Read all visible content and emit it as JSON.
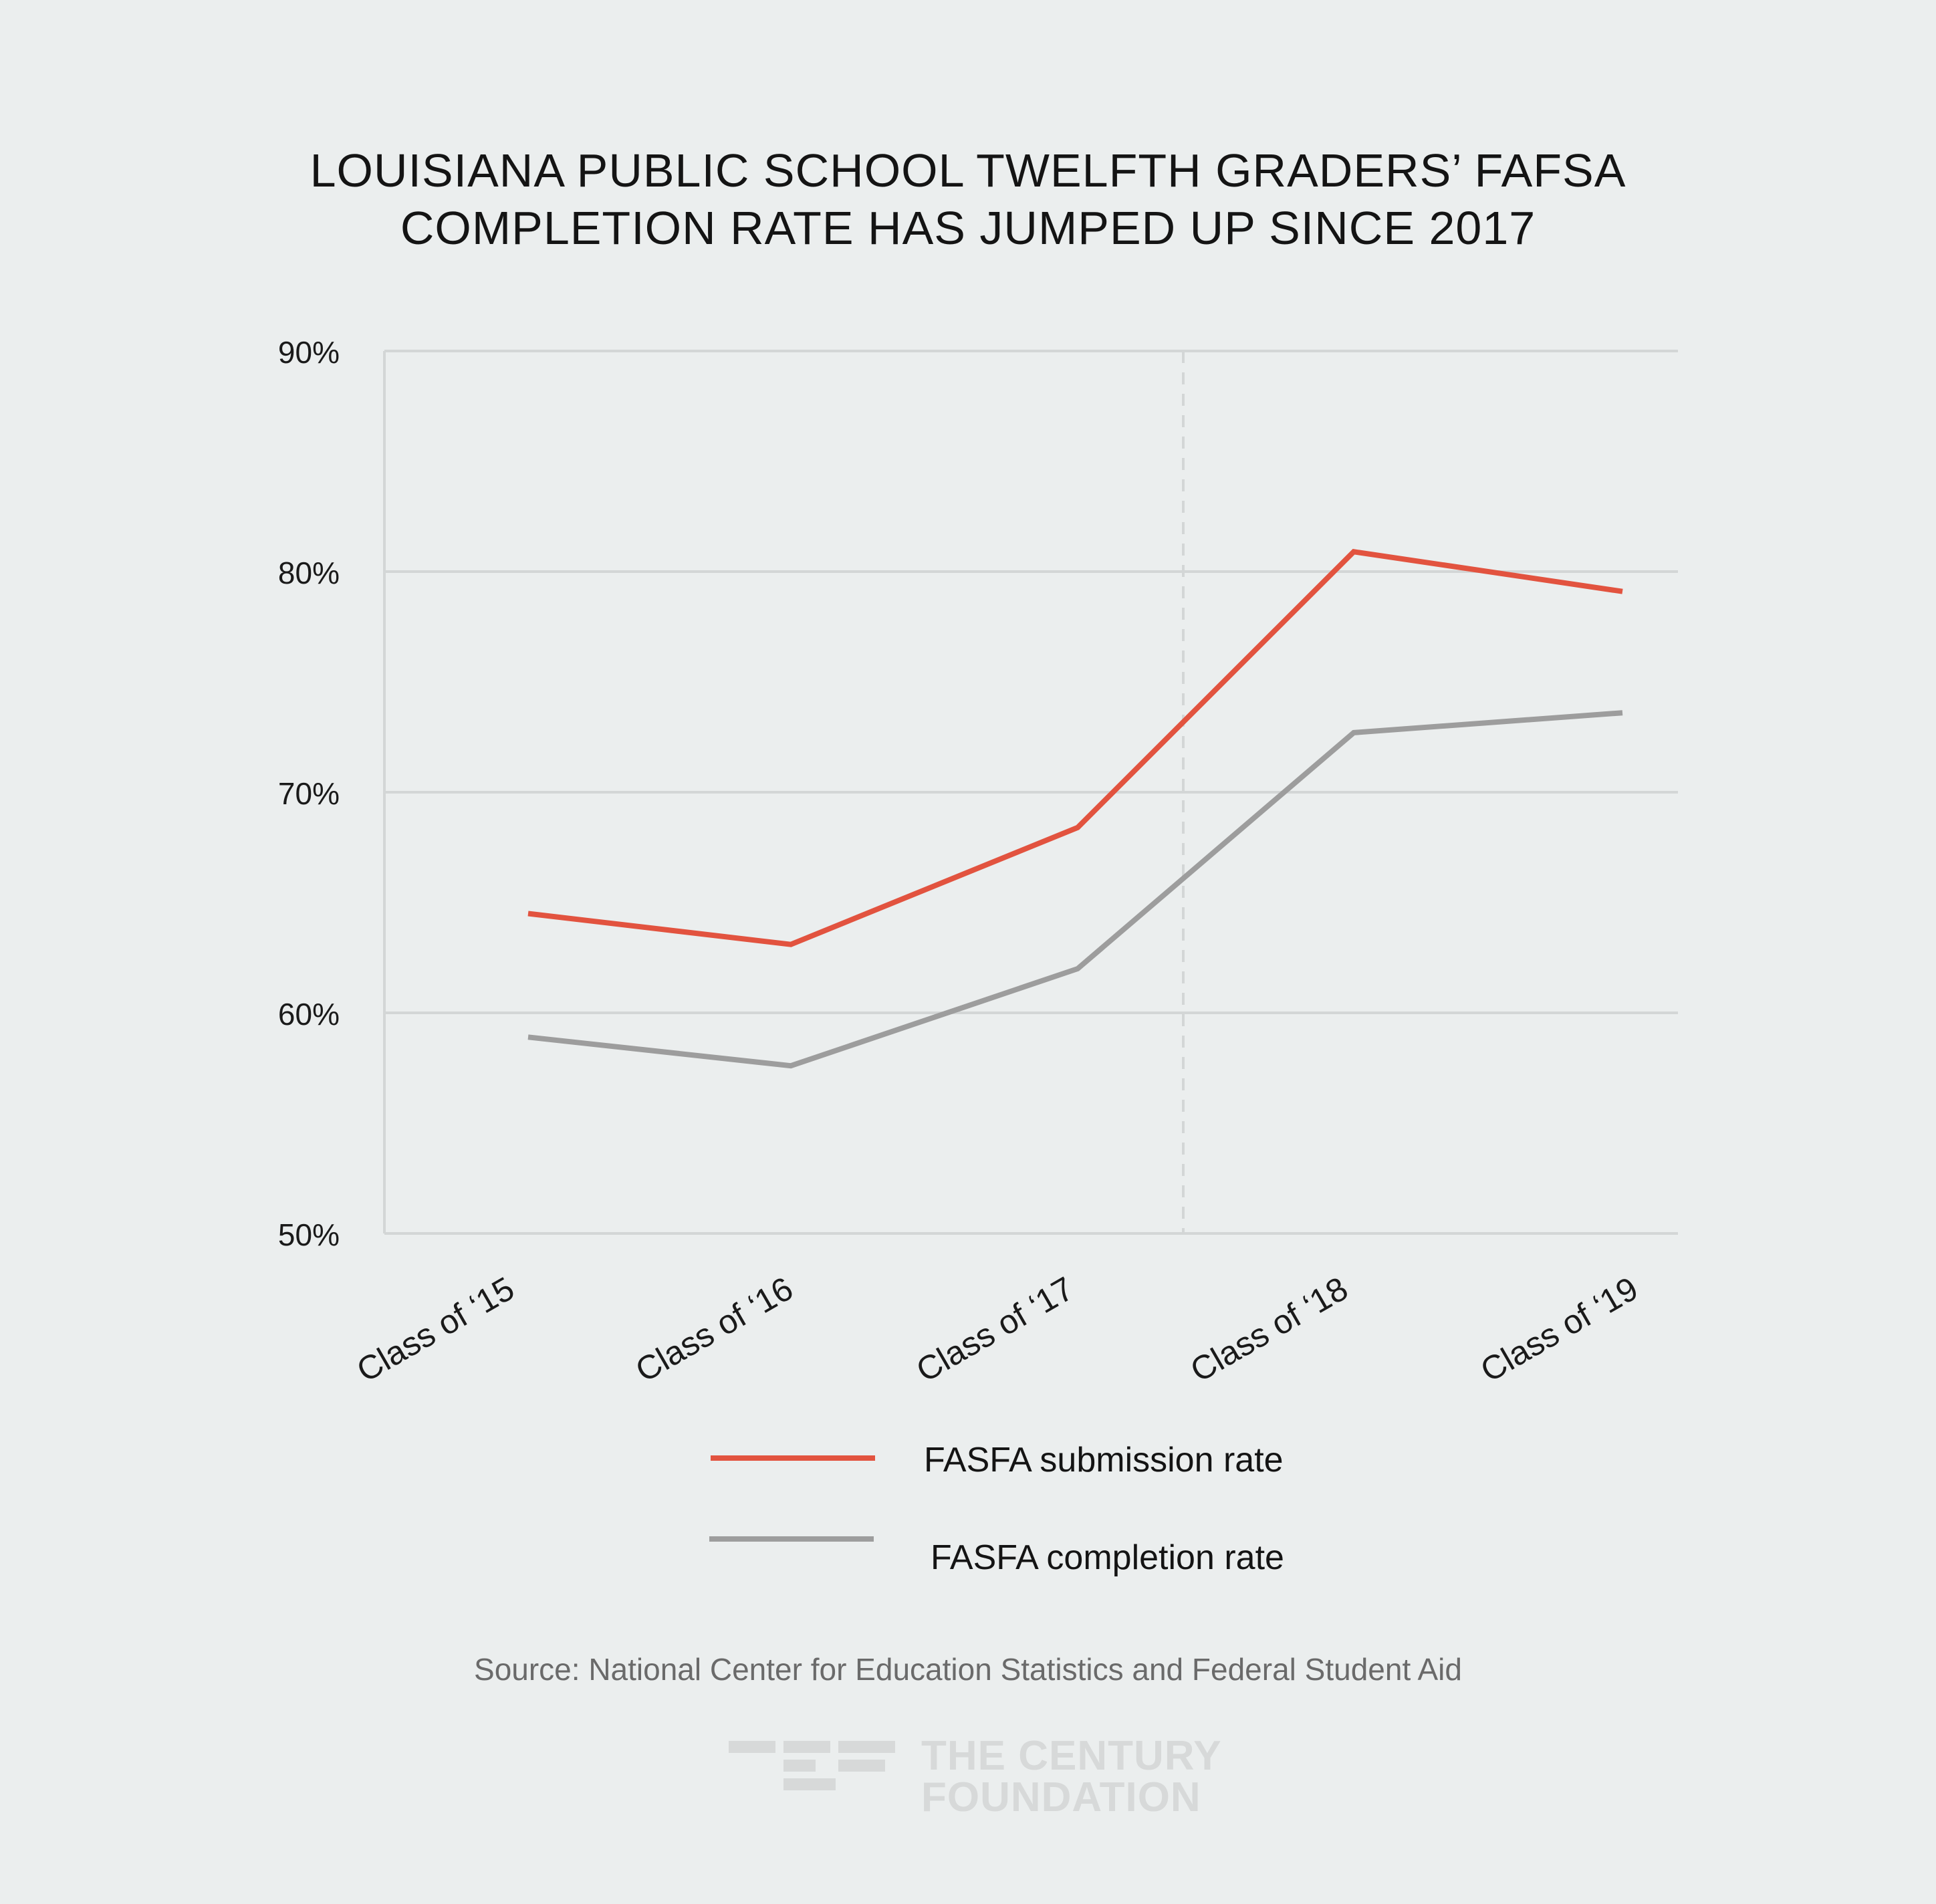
{
  "title_line1": "LOUISIANA PUBLIC SCHOOL TWELFTH GRADERS’ FAFSA",
  "title_line2": "COMPLETION RATE HAS JUMPED UP SINCE 2017",
  "source": "Source: National Center for Education Statistics and Federal Student Aid",
  "logo": {
    "line1": "THE CENTURY",
    "line2": "FOUNDATION"
  },
  "colors": {
    "background": "#ebeeee",
    "submission": "#e2533f",
    "completion": "#9d9d9d",
    "grid": "#d3d6d6",
    "logo": "#d7d9d9"
  },
  "chart_data": {
    "type": "line",
    "title": "LOUISIANA PUBLIC SCHOOL TWELFTH GRADERS’ FAFSA COMPLETION RATE HAS JUMPED UP SINCE 2017",
    "categories": [
      "Class of ‘15",
      "Class of ‘16",
      "Class of ‘17",
      "Class of ‘18",
      "Class of ‘19"
    ],
    "y_ticks": [
      "90%",
      "80%",
      "70%",
      "60%",
      "50%"
    ],
    "ylim": [
      50,
      90
    ],
    "grid": true,
    "legend_position": "bottom",
    "marker": "dashed vertical line between Class of ‘17 and Class of ‘18",
    "series": [
      {
        "name": "FASFA submission rate",
        "color": "#e2533f",
        "values": [
          64.5,
          63.1,
          68.4,
          80.9,
          79.1
        ]
      },
      {
        "name": "FASFA completion rate",
        "color": "#9d9d9d",
        "values": [
          58.9,
          57.6,
          62.0,
          72.7,
          73.6
        ]
      }
    ]
  }
}
